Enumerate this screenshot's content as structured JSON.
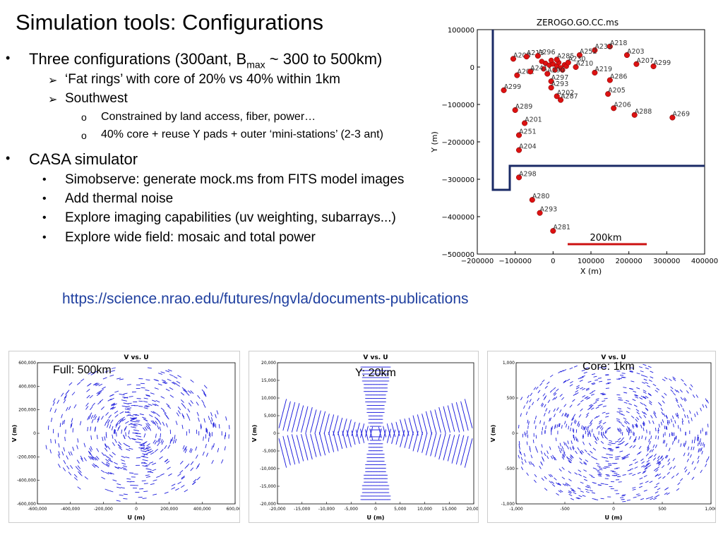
{
  "slide": {
    "title": "Simulation tools: Configurations",
    "bullet1": {
      "pre": "Three configurations (300ant, B",
      "sub": "max",
      "post": " ~ 300 to 500km)"
    },
    "fat_rings": "‘Fat rings’  with core of 20% vs 40% within 1km",
    "southwest": "Southwest",
    "constrained": "Constrained by land access, fiber, power…",
    "core_reuse": "40% core + reuse Y pads + outer ‘mini-stations’ (2-3 ant)",
    "casa": "CASA simulator",
    "simobserve": "Simobserve: generate mock.ms from FITS model images",
    "thermal": "Add thermal noise",
    "imaging": "Explore imaging capabilities (uv weighting, subarrays...)",
    "widefield": "Explore wide field: mosaic and total power",
    "link": "https://science.nrao.edu/futures/ngvla/documents-publications",
    "markers": {
      "bullet": "•",
      "arrow": "➢",
      "circle": "o"
    }
  },
  "config_plot": {
    "title": "ZEROGO.GO.CC.ms",
    "xlabel": "X (m)",
    "ylabel": "Y (m)",
    "xticks": [
      "−200000",
      "−100000",
      "0",
      "100000",
      "200000",
      "300000",
      "400000"
    ],
    "yticks": [
      "100000",
      "0",
      "−100000",
      "−200000",
      "−300000",
      "−400000",
      "−500000"
    ],
    "scale_label": "200km",
    "antennas": [
      {
        "label": "A218",
        "x": 150000,
        "y": 55000
      },
      {
        "label": "A233",
        "x": 110000,
        "y": 45000
      },
      {
        "label": "A252",
        "x": 70000,
        "y": 32000
      },
      {
        "label": "A203",
        "x": 195000,
        "y": 32000
      },
      {
        "label": "A207",
        "x": 220000,
        "y": 8000
      },
      {
        "label": "A299",
        "x": 265000,
        "y": 2000
      },
      {
        "label": "A208",
        "x": -105000,
        "y": 22000
      },
      {
        "label": "A213",
        "x": -70000,
        "y": 28000
      },
      {
        "label": "A296",
        "x": -40000,
        "y": 30000
      },
      {
        "label": "A285",
        "x": 10000,
        "y": 20000
      },
      {
        "label": "A230",
        "x": 40000,
        "y": 12000
      },
      {
        "label": "A210",
        "x": 60000,
        "y": 0
      },
      {
        "label": "A219",
        "x": 110000,
        "y": -15000
      },
      {
        "label": "A286",
        "x": 150000,
        "y": -35000
      },
      {
        "label": "A202",
        "x": -95000,
        "y": -22000
      },
      {
        "label": "A241",
        "x": -60000,
        "y": -12000
      },
      {
        "label": "A290",
        "x": -15000,
        "y": -18000
      },
      {
        "label": "A297",
        "x": -5000,
        "y": -38000
      },
      {
        "label": "A293",
        "x": -5000,
        "y": -55000
      },
      {
        "label": "A205",
        "x": 145000,
        "y": -72000
      },
      {
        "label": "A299",
        "x": -130000,
        "y": -62000
      },
      {
        "label": "A202",
        "x": 10000,
        "y": -78000
      },
      {
        "label": "A287",
        "x": 20000,
        "y": -88000
      },
      {
        "label": "A206",
        "x": 160000,
        "y": -110000
      },
      {
        "label": "A289",
        "x": -100000,
        "y": -115000
      },
      {
        "label": "A288",
        "x": 215000,
        "y": -128000
      },
      {
        "label": "A269",
        "x": 315000,
        "y": -135000
      },
      {
        "label": "A201",
        "x": -75000,
        "y": -150000
      },
      {
        "label": "A251",
        "x": -90000,
        "y": -182000
      },
      {
        "label": "A204",
        "x": -90000,
        "y": -222000
      },
      {
        "label": "A298",
        "x": -90000,
        "y": -295000
      },
      {
        "label": "A280",
        "x": -55000,
        "y": -355000
      },
      {
        "label": "A293",
        "x": -35000,
        "y": -390000
      },
      {
        "label": "A281",
        "x": 0,
        "y": -438000
      }
    ]
  },
  "uv_plots": [
    {
      "title": "V vs. U",
      "label": "Full: 500km",
      "xlabel": "U (m)",
      "ylabel": "V (m)",
      "xticks": [
        "-600,000",
        "-400,000",
        "-200,000",
        "0",
        "200,000",
        "400,000",
        "600,000"
      ],
      "yticks": [
        "600,000",
        "400,000",
        "200,000",
        "0",
        "-200,000",
        "-400,000",
        "-600,000"
      ]
    },
    {
      "title": "V vs. U",
      "label": "Y: 20km",
      "xlabel": "U (m)",
      "ylabel": "V (m)",
      "xticks": [
        "-20,000",
        "-15,000",
        "-10,000",
        "-5,000",
        "0",
        "5,000",
        "10,000",
        "15,000",
        "20,000"
      ],
      "yticks": [
        "20,000",
        "15,000",
        "10,000",
        "5,000",
        "0",
        "-5,000",
        "-10,000",
        "-15,000",
        "-20,000"
      ]
    },
    {
      "title": "V vs. U",
      "label": "Core: 1km",
      "xlabel": "U (m)",
      "ylabel": "V (m)",
      "xticks": [
        "-1,000",
        "-500",
        "0",
        "500",
        "1,000"
      ],
      "yticks": [
        "1,000",
        "500",
        "0",
        "-500",
        "-1,000"
      ]
    }
  ],
  "colors": {
    "antenna": "#dd1111",
    "boundary": "#1a2a66",
    "scalebar": "#cc1111",
    "uv": "#1f1fdd",
    "link": "#1f3f9f"
  }
}
